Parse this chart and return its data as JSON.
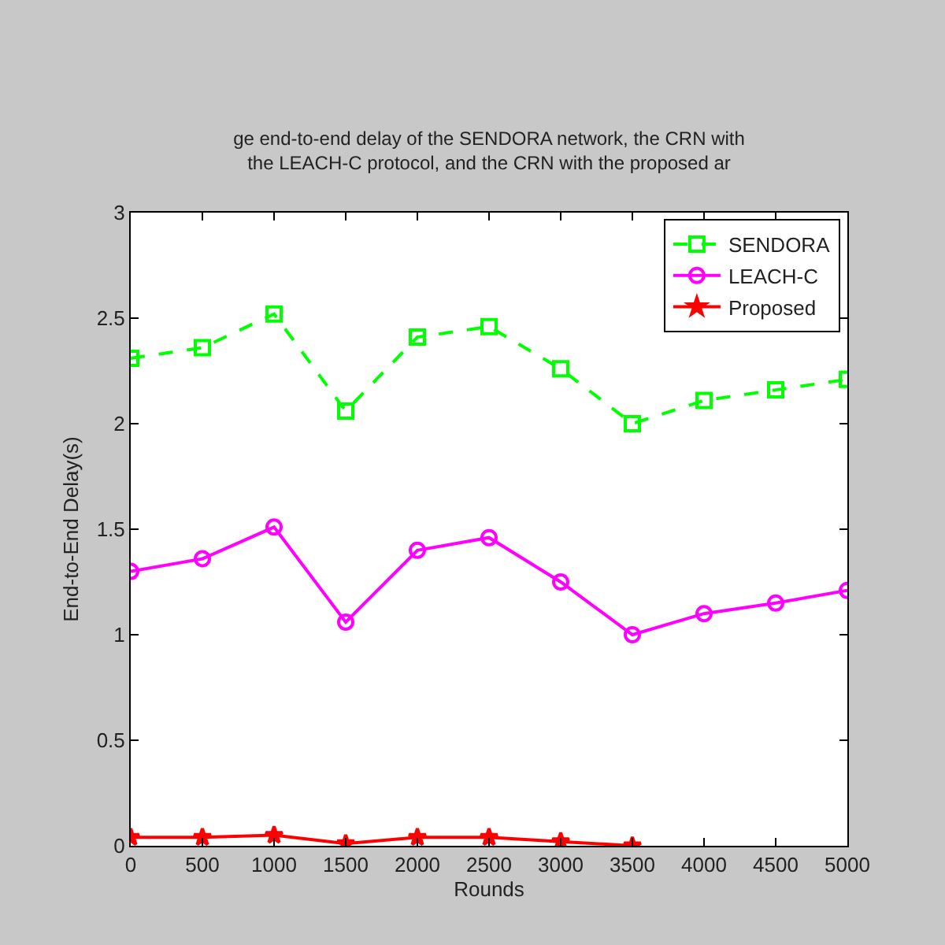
{
  "chart_data": {
    "type": "line",
    "title": "ge end-to-end delay of the SENDORA network, the CRN with the LEACH-C protocol, and the CRN with the proposed ar",
    "xlabel": "Rounds",
    "ylabel": "End-to-End Delay(s)",
    "x": [
      0,
      500,
      1000,
      1500,
      2000,
      2500,
      3000,
      3500,
      4000,
      4500,
      5000
    ],
    "series": [
      {
        "name": "SENDORA",
        "color": "#00ff00",
        "marker": "square",
        "line_style": "dashed",
        "values": [
          2.31,
          2.36,
          2.52,
          2.06,
          2.41,
          2.46,
          2.26,
          2.0,
          2.11,
          2.16,
          2.21
        ]
      },
      {
        "name": "LEACH-C",
        "color": "#ff00ff",
        "marker": "circle",
        "line_style": "solid",
        "values": [
          1.3,
          1.36,
          1.51,
          1.06,
          1.4,
          1.46,
          1.25,
          1.0,
          1.1,
          1.15,
          1.21
        ]
      },
      {
        "name": "Proposed",
        "color": "#ff0000",
        "marker": "star",
        "line_style": "solid",
        "values": [
          0.04,
          0.04,
          0.05,
          0.01,
          0.04,
          0.04,
          0.02,
          0.0,
          null,
          null,
          null
        ]
      }
    ],
    "xlim": [
      0,
      5000
    ],
    "xticks": [
      0,
      500,
      1000,
      1500,
      2000,
      2500,
      3000,
      3500,
      4000,
      4500,
      5000
    ],
    "ylim": [
      0,
      3
    ],
    "yticks": [
      0,
      0.5,
      1,
      1.5,
      2,
      2.5,
      3
    ],
    "grid": false,
    "legend": "top right"
  }
}
